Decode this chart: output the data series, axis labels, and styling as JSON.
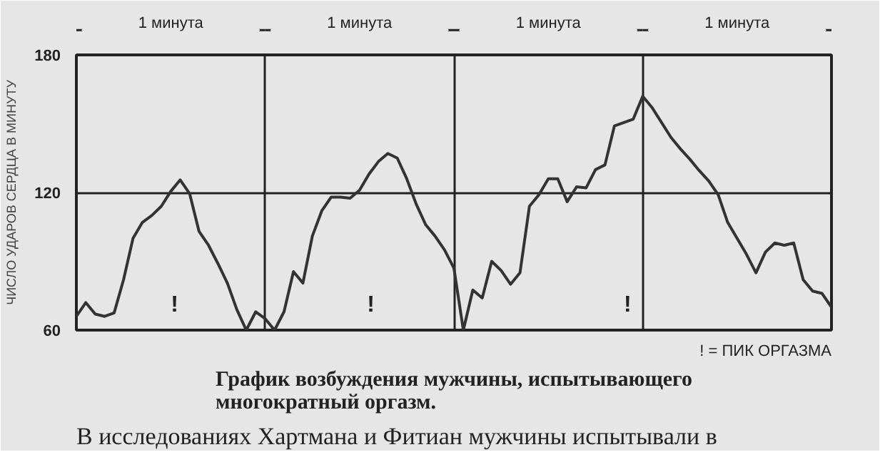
{
  "chart_data": {
    "type": "line",
    "title": "График возбуждения мужчины, испытывающего\nмногократный оргазм.",
    "ylabel": "ЧИСЛО УДАРОВ СЕРДЦА В МИНУТУ",
    "categories": [
      null,
      null,
      null,
      null,
      null,
      null,
      null,
      null,
      null,
      null,
      null,
      null,
      null,
      null,
      null,
      null,
      null,
      null,
      null,
      null,
      null,
      null,
      null,
      null,
      null,
      null,
      null,
      null,
      null,
      null,
      null,
      null,
      null,
      null,
      null,
      null,
      null,
      null,
      null,
      null,
      null,
      null,
      null,
      null,
      null,
      null,
      null,
      null,
      null,
      null,
      null,
      null,
      null,
      null,
      null,
      null,
      null,
      null,
      null,
      null,
      null,
      null,
      null,
      null,
      null,
      null,
      null,
      null,
      null,
      null,
      null,
      null,
      null,
      null,
      null,
      null,
      null,
      null,
      null,
      null,
      null
    ],
    "series": [
      {
        "color": "#333333",
        "values": [
          66,
          72,
          67,
          66,
          67.5,
          82,
          100,
          107,
          110,
          114,
          120.5,
          125.5,
          119.5,
          103,
          97,
          89,
          80.5,
          69,
          60,
          68,
          65,
          60,
          68,
          85.5,
          80.5,
          101,
          112,
          118,
          118,
          117.5,
          121,
          128,
          133.5,
          137,
          135,
          126,
          115,
          106,
          101,
          95,
          87,
          60,
          77.5,
          74,
          90,
          86,
          80,
          85,
          114,
          119,
          126,
          126,
          116,
          122.5,
          122,
          130,
          132,
          149,
          150.5,
          152,
          162,
          157,
          150.5,
          144,
          139,
          134.5,
          129.5,
          125,
          119,
          107,
          100,
          93,
          85,
          94,
          98,
          97,
          98,
          82,
          77,
          76,
          70
        ]
      }
    ],
    "ylim": [
      60,
      180
    ],
    "yticks": [
      60,
      120,
      180
    ],
    "grid": true,
    "tick_labels": "y",
    "line_style": "solid",
    "annotations": [
      "1 минута",
      "1 минута",
      "1 минута",
      "1 минута",
      "!",
      "!",
      "!",
      "! = ПИК ОРГАЗМА",
      "В исследованиях Хартмана и Фитиан мужчины испытывали в"
    ]
  }
}
